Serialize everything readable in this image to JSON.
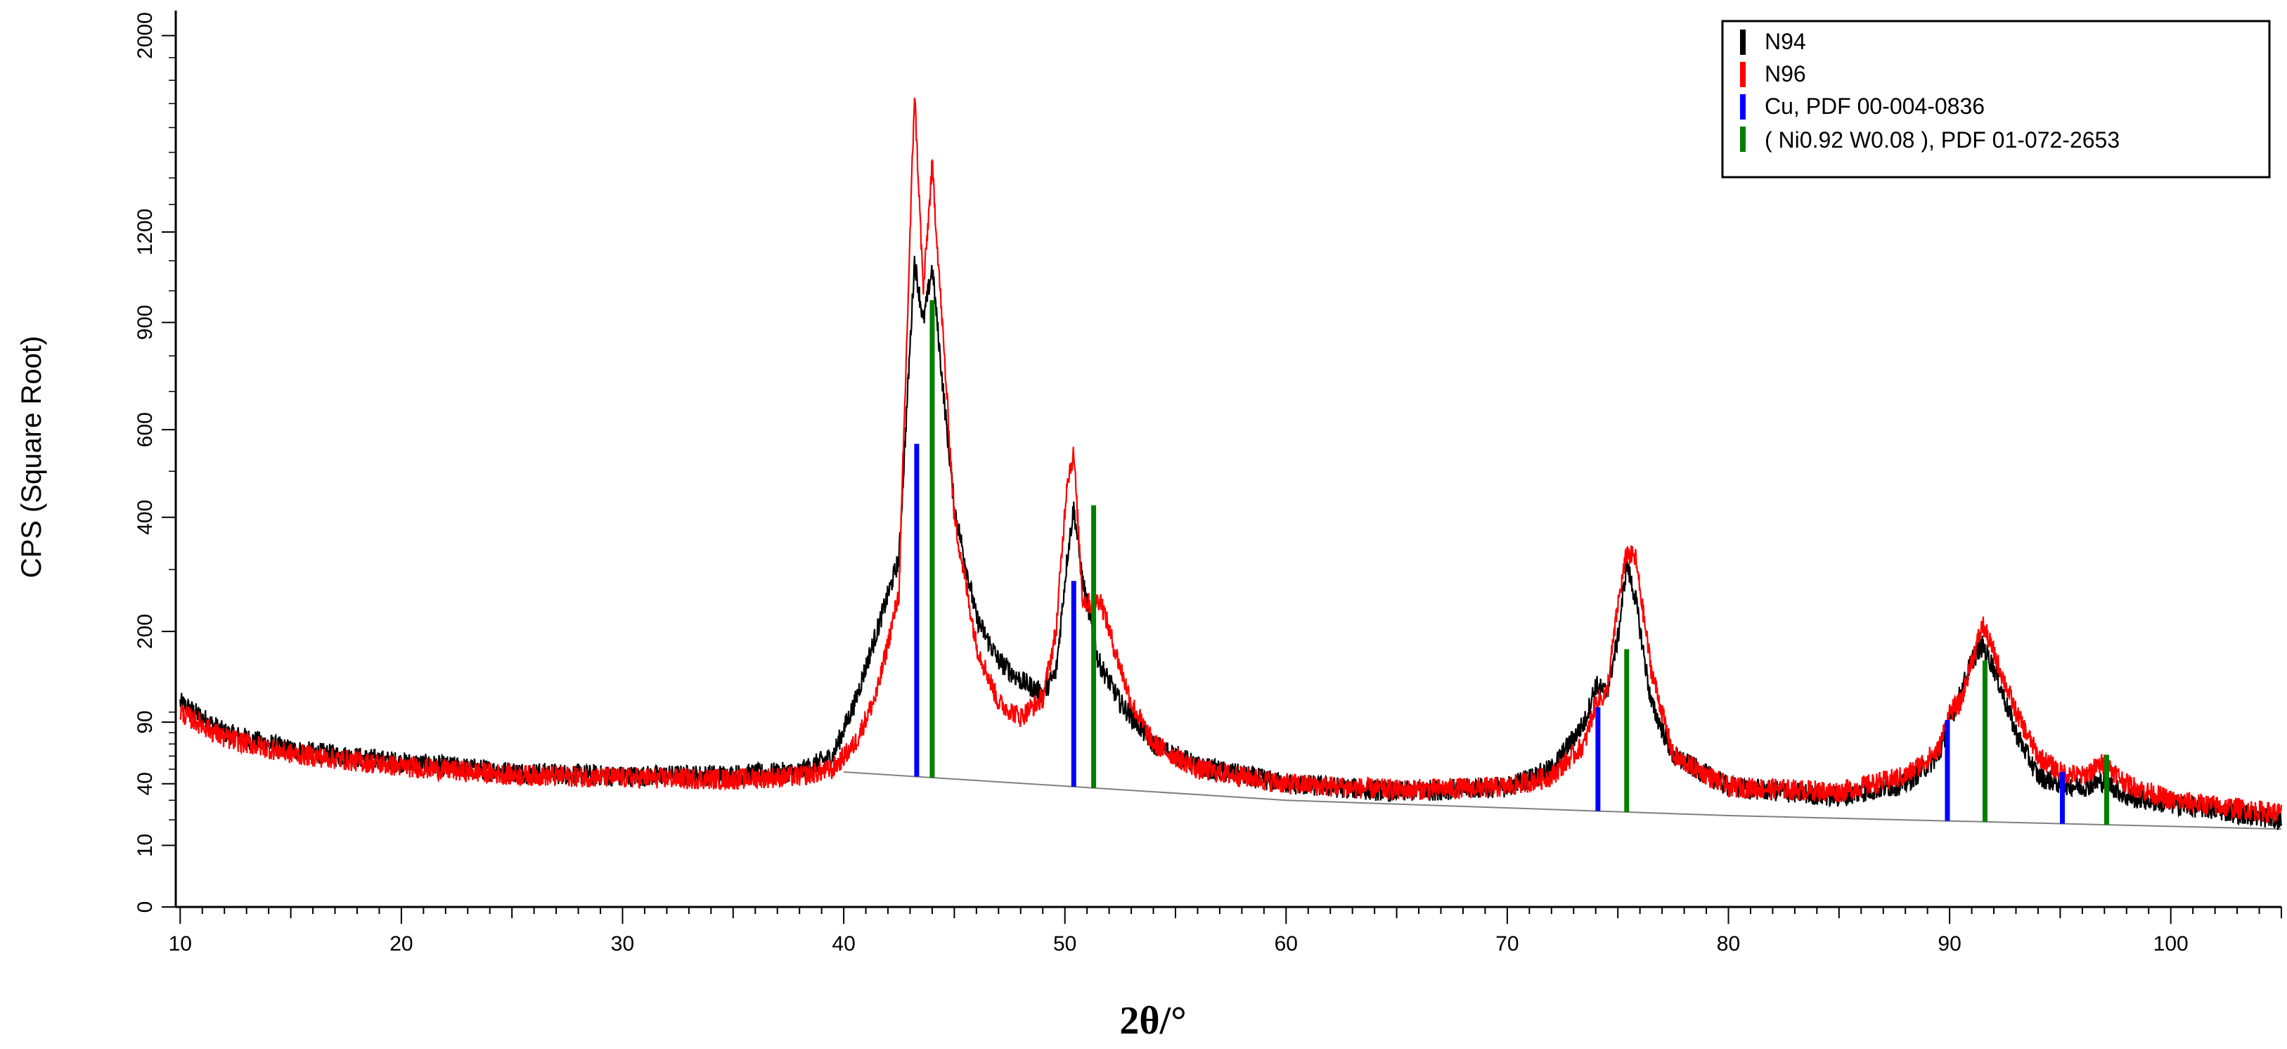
{
  "chart_data": {
    "type": "line",
    "xlabel": "2θ/°",
    "ylabel": "CPS (Square Root)",
    "y_scale": "square root",
    "xlim": [
      9.8,
      105
    ],
    "ylim": [
      0,
      2100
    ],
    "x_ticks": [
      10,
      20,
      30,
      40,
      50,
      60,
      70,
      80,
      90,
      100
    ],
    "y_ticks": [
      0,
      10,
      40,
      90,
      200,
      400,
      600,
      900,
      1200,
      2000
    ],
    "grid": false,
    "legend_position": "top-right",
    "colors": {
      "N94": "#000000",
      "N96": "#ff0000",
      "Cu": "#0000ff",
      "NiW": "#008000",
      "background": "#808080"
    },
    "series": [
      {
        "name": "N94",
        "x": [
          10,
          12,
          15,
          20,
          25,
          30,
          35,
          38,
          39.5,
          40.5,
          41.5,
          42.5,
          43.2,
          43.6,
          44.0,
          44.5,
          45,
          46,
          47,
          48,
          49,
          49.6,
          50.1,
          50.4,
          50.8,
          51.5,
          52.5,
          54,
          56,
          60,
          65,
          70,
          72,
          73.5,
          74,
          74.5,
          75,
          75.4,
          75.8,
          76.5,
          77.5,
          80,
          85,
          88,
          89.5,
          90,
          90.5,
          91,
          91.5,
          92,
          93,
          94,
          95,
          96,
          97,
          98,
          100,
          102,
          105
        ],
        "y": [
          110,
          80,
          65,
          55,
          48,
          45,
          46,
          48,
          60,
          110,
          200,
          320,
          1100,
          900,
          1080,
          700,
          420,
          220,
          160,
          135,
          120,
          145,
          320,
          420,
          280,
          160,
          110,
          70,
          52,
          40,
          35,
          38,
          50,
          90,
          130,
          120,
          190,
          310,
          250,
          110,
          60,
          38,
          32,
          40,
          60,
          90,
          120,
          160,
          180,
          150,
          80,
          45,
          40,
          38,
          42,
          32,
          28,
          25,
          20
        ]
      },
      {
        "name": "N96",
        "x": [
          10,
          12,
          15,
          20,
          25,
          30,
          35,
          38,
          39.5,
          40.5,
          41.5,
          42.5,
          43.2,
          43.6,
          44.0,
          44.5,
          45,
          46,
          47,
          48,
          49,
          49.6,
          50.1,
          50.4,
          50.8,
          51.2,
          51.6,
          52.2,
          53,
          54,
          56,
          60,
          65,
          70,
          72,
          73.5,
          74,
          74.5,
          75,
          75.4,
          75.8,
          76.5,
          77.5,
          80,
          85,
          88,
          89.5,
          90,
          90.5,
          91,
          91.5,
          92,
          93,
          94,
          95,
          96,
          97,
          98,
          100,
          102,
          105
        ],
        "y": [
          100,
          75,
          62,
          52,
          46,
          44,
          43,
          45,
          50,
          70,
          120,
          260,
          1750,
          1000,
          1450,
          850,
          400,
          180,
          110,
          95,
          115,
          200,
          480,
          540,
          250,
          240,
          250,
          180,
          110,
          70,
          50,
          40,
          36,
          38,
          45,
          70,
          110,
          120,
          240,
          330,
          320,
          150,
          60,
          38,
          35,
          45,
          65,
          100,
          110,
          160,
          210,
          170,
          100,
          60,
          48,
          45,
          55,
          40,
          30,
          27,
          23
        ]
      }
    ],
    "reference_lines": [
      {
        "name": "Cu, PDF 00-004-0836",
        "x": [
          43.3,
          50.4,
          74.1,
          89.9,
          95.1
        ],
        "y": [
          565,
          280,
          105,
          92,
          48
        ]
      },
      {
        "name": "( Ni0.92 W0.08 ), PDF 01-072-2653",
        "x": [
          44.0,
          51.3,
          75.4,
          91.6,
          97.1
        ],
        "y": [
          970,
          425,
          175,
          160,
          61
        ]
      }
    ],
    "background_line": {
      "x": [
        40,
        60,
        80,
        105
      ],
      "y": [
        48,
        30,
        22,
        16
      ]
    }
  }
}
